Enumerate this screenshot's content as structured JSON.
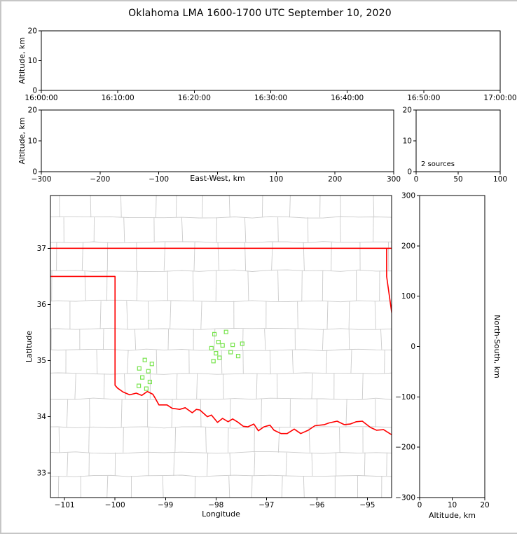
{
  "title": "Oklahoma LMA 1600-1700 UTC September 10, 2020",
  "colors": {
    "background": "#ffffff",
    "outer_border": "#c6c6c6",
    "frame": "#000000",
    "text": "#000000",
    "county_lines": "#cbcbcb",
    "state_border": "#ff0000",
    "station_marker": "#79e44f"
  },
  "chart_data": [
    {
      "id": "time_altitude",
      "type": "scatter",
      "xlabel": "",
      "ylabel": "Altitude, km",
      "xlim": [
        0,
        3600
      ],
      "ylim": [
        0,
        20
      ],
      "xticks": {
        "values": [
          0,
          600,
          1200,
          1800,
          2400,
          3000,
          3600
        ],
        "labels": [
          "16:00:00",
          "16:10:00",
          "16:20:00",
          "16:30:00",
          "16:40:00",
          "16:50:00",
          "17:00:00"
        ]
      },
      "yticks": {
        "values": [
          0,
          10,
          20
        ],
        "labels": [
          "0",
          "10",
          "20"
        ]
      },
      "points": []
    },
    {
      "id": "eastwest_altitude",
      "type": "scatter",
      "xlabel": "East-West, km",
      "ylabel": "Altitude, km",
      "xlim": [
        -300,
        300
      ],
      "ylim": [
        0,
        20
      ],
      "xticks": {
        "values": [
          -300,
          -200,
          -100,
          0,
          100,
          200,
          300
        ],
        "labels": [
          "−300",
          "−200",
          "−100",
          "",
          "100",
          "200",
          "300"
        ]
      },
      "yticks": {
        "values": [
          0,
          10,
          20
        ],
        "labels": [
          "0",
          "10",
          "20"
        ]
      },
      "points": []
    },
    {
      "id": "altitude_histogram",
      "type": "histogram",
      "xlabel": "",
      "ylabel": "",
      "annotation": "2 sources",
      "xlim": [
        0,
        100
      ],
      "ylim": [
        0,
        20
      ],
      "xticks": {
        "values": [
          0,
          50,
          100
        ],
        "labels": [
          "0",
          "50",
          "100"
        ]
      },
      "yticks": {
        "values": [
          0,
          10,
          20
        ],
        "labels": [
          "0",
          "10",
          "20"
        ]
      },
      "points": []
    },
    {
      "id": "plan_view_map",
      "type": "map",
      "xlabel": "Longitude",
      "ylabel": "Latitude",
      "marker": "open-square",
      "xlim": [
        -101.28,
        -94.52
      ],
      "ylim": [
        32.56,
        37.94
      ],
      "xticks": {
        "values": [
          -101,
          -100,
          -99,
          -98,
          -97,
          -96,
          -95
        ],
        "labels": [
          "−101",
          "−100",
          "−99",
          "−98",
          "−97",
          "−96",
          "−95"
        ]
      },
      "yticks": {
        "values": [
          33,
          34,
          35,
          36,
          37
        ],
        "labels": [
          "33",
          "34",
          "35",
          "36",
          "37"
        ]
      },
      "stations": [
        [
          -98.03,
          35.47
        ],
        [
          -97.8,
          35.51
        ],
        [
          -97.95,
          35.33
        ],
        [
          -98.09,
          35.22
        ],
        [
          -97.87,
          35.27
        ],
        [
          -98.0,
          35.13
        ],
        [
          -97.67,
          35.28
        ],
        [
          -98.05,
          34.99
        ],
        [
          -97.93,
          35.05
        ],
        [
          -97.71,
          35.15
        ],
        [
          -97.56,
          35.08
        ],
        [
          -97.48,
          35.3
        ],
        [
          -99.41,
          35.01
        ],
        [
          -99.52,
          34.86
        ],
        [
          -99.34,
          34.81
        ],
        [
          -99.46,
          34.7
        ],
        [
          -99.31,
          34.62
        ],
        [
          -99.53,
          34.55
        ],
        [
          -99.38,
          34.5
        ],
        [
          -99.27,
          34.94
        ]
      ],
      "state_border": [
        [
          [
            -101.4,
            37.0
          ],
          [
            -94.4,
            37.0
          ]
        ],
        [
          [
            -101.4,
            36.5
          ],
          [
            -100.0,
            36.5
          ],
          [
            -100.0,
            34.56
          ],
          [
            -99.95,
            34.51
          ],
          [
            -99.84,
            34.44
          ],
          [
            -99.71,
            34.39
          ],
          [
            -99.58,
            34.42
          ],
          [
            -99.47,
            34.38
          ],
          [
            -99.36,
            34.45
          ],
          [
            -99.25,
            34.4
          ],
          [
            -99.21,
            34.34
          ],
          [
            -99.13,
            34.21
          ],
          [
            -98.97,
            34.21
          ],
          [
            -98.87,
            34.15
          ],
          [
            -98.72,
            34.13
          ],
          [
            -98.61,
            34.16
          ],
          [
            -98.47,
            34.07
          ],
          [
            -98.39,
            34.13
          ],
          [
            -98.32,
            34.12
          ],
          [
            -98.17,
            34.0
          ],
          [
            -98.09,
            34.03
          ],
          [
            -97.97,
            33.9
          ],
          [
            -97.87,
            33.97
          ],
          [
            -97.76,
            33.91
          ],
          [
            -97.67,
            33.96
          ],
          [
            -97.56,
            33.9
          ],
          [
            -97.46,
            33.83
          ],
          [
            -97.37,
            33.82
          ],
          [
            -97.25,
            33.87
          ],
          [
            -97.16,
            33.75
          ],
          [
            -97.05,
            33.82
          ],
          [
            -96.93,
            33.85
          ],
          [
            -96.85,
            33.76
          ],
          [
            -96.71,
            33.7
          ],
          [
            -96.59,
            33.7
          ],
          [
            -96.45,
            33.78
          ],
          [
            -96.32,
            33.7
          ],
          [
            -96.17,
            33.76
          ],
          [
            -96.04,
            33.84
          ],
          [
            -95.85,
            33.86
          ],
          [
            -95.76,
            33.89
          ],
          [
            -95.6,
            33.92
          ],
          [
            -95.46,
            33.86
          ],
          [
            -95.34,
            33.87
          ],
          [
            -95.22,
            33.91
          ],
          [
            -95.1,
            33.92
          ],
          [
            -94.94,
            33.81
          ],
          [
            -94.82,
            33.76
          ],
          [
            -94.68,
            33.77
          ],
          [
            -94.45,
            33.64
          ]
        ],
        [
          [
            -94.618,
            37.0
          ],
          [
            -94.618,
            36.5
          ],
          [
            -94.4,
            35.1
          ]
        ]
      ]
    },
    {
      "id": "northsouth_altitude",
      "type": "scatter",
      "xlabel": "Altitude, km",
      "ylabel_right": "North-South, km",
      "xlim": [
        0,
        20
      ],
      "ylim": [
        -300,
        300
      ],
      "xticks": {
        "values": [
          0,
          10,
          20
        ],
        "labels": [
          "0",
          "10",
          "20"
        ]
      },
      "yticks": {
        "values": [
          300,
          200,
          100,
          0,
          -100,
          -200,
          -300
        ],
        "labels": [
          "300",
          "200",
          "100",
          "0",
          "−100",
          "−200",
          "−300"
        ]
      },
      "points": []
    }
  ]
}
